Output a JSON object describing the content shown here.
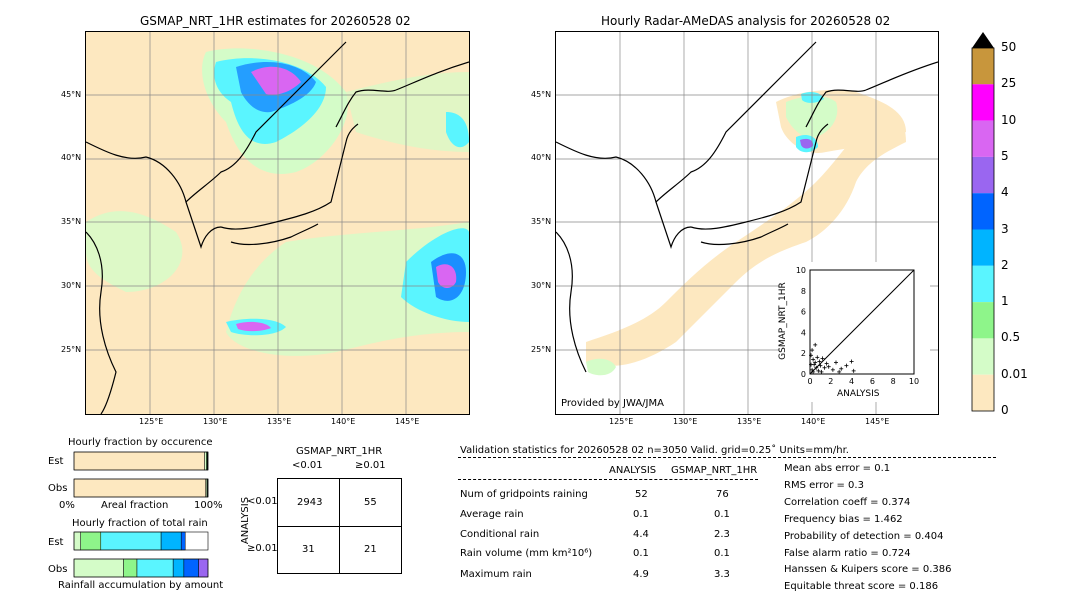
{
  "left_map": {
    "title": "GSMAP_NRT_1HR estimates for 20260528 02",
    "lat_labels": [
      "45°N",
      "40°N",
      "35°N",
      "30°N",
      "25°N"
    ],
    "lon_labels": [
      "125°E",
      "130°E",
      "135°E",
      "140°E",
      "145°E"
    ]
  },
  "right_map": {
    "title": "Hourly Radar-AMeDAS analysis for 20260528 02",
    "lat_labels": [
      "45°N",
      "40°N",
      "35°N",
      "30°N",
      "25°N"
    ],
    "lon_labels": [
      "125°E",
      "130°E",
      "135°E",
      "140°E",
      "145°E"
    ],
    "credit": "Provided by JWA/JMA"
  },
  "colorbar": {
    "labels": [
      "50",
      "25",
      "10",
      "5",
      "4",
      "3",
      "2",
      "1",
      "0.5",
      "0.01",
      "0"
    ],
    "colors": [
      "#c8963c",
      "#ff00ff",
      "#d966f2",
      "#9a66f0",
      "#0064ff",
      "#00b4ff",
      "#5af5ff",
      "#8ef58a",
      "#d4fcc8",
      "#fde8c0"
    ]
  },
  "scatter_inset": {
    "xlabel": "ANALYSIS",
    "ylabel": "GSMAP_NRT_1HR",
    "ticks": [
      "0",
      "2",
      "4",
      "6",
      "8",
      "10"
    ]
  },
  "bars": {
    "occ_title": "Hourly fraction by occurence",
    "occ_xlabel": "Areal fraction",
    "occ_left": "0%",
    "occ_right": "100%",
    "total_title": "Hourly fraction of total rain",
    "total_xlabel": "Rainfall accumulation by amount",
    "est_label": "Est",
    "obs_label": "Obs"
  },
  "contingency": {
    "title": "GSMAP_NRT_1HR",
    "col_lt": "<0.01",
    "col_ge": "≥0.01",
    "row_axis": "ANALYSIS",
    "row_lt": "<0.01",
    "row_ge": "≥0.01",
    "cells": [
      "2943",
      "55",
      "31",
      "21"
    ]
  },
  "validation": {
    "header": "Validation statistics for 20260528 02  n=3050 Valid. grid=0.25˚ Units=mm/hr.",
    "col_analysis": "ANALYSIS",
    "col_gsmap": "GSMAP_NRT_1HR",
    "rows": [
      {
        "label": "Num of gridpoints raining",
        "a": "52",
        "g": "76"
      },
      {
        "label": "Average rain",
        "a": "0.1",
        "g": "0.1"
      },
      {
        "label": "Conditional rain",
        "a": "4.4",
        "g": "2.3"
      },
      {
        "label": "Rain volume (mm km²10⁶)",
        "a": "0.1",
        "g": "0.1"
      },
      {
        "label": "Maximum rain",
        "a": "4.9",
        "g": "3.3"
      }
    ],
    "scores": [
      "Mean abs error =    0.1",
      "RMS error =    0.3",
      "Correlation coeff =  0.374",
      "Frequency bias =  1.462",
      "Probability of detection =  0.404",
      "False alarm ratio =  0.724",
      "Hanssen & Kuipers score =  0.386",
      "Equitable threat score =  0.186"
    ]
  },
  "chart_data": [
    {
      "type": "scatter",
      "xlabel": "ANALYSIS",
      "ylabel": "GSMAP_NRT_1HR",
      "xlim": [
        0,
        10
      ],
      "ylim": [
        0,
        10
      ],
      "points": [
        [
          0.1,
          1.8
        ],
        [
          0.2,
          2.3
        ],
        [
          0.3,
          1.4
        ],
        [
          0.4,
          0.9
        ],
        [
          0.5,
          1.1
        ],
        [
          0.6,
          0.6
        ],
        [
          0.2,
          0.4
        ],
        [
          0.7,
          1.6
        ],
        [
          1.0,
          0.8
        ],
        [
          1.2,
          1.5
        ],
        [
          1.4,
          0.6
        ],
        [
          1.6,
          1.0
        ],
        [
          1.8,
          0.7
        ],
        [
          2.2,
          0.4
        ],
        [
          2.5,
          1.1
        ],
        [
          3.0,
          0.5
        ],
        [
          3.5,
          0.8
        ],
        [
          4.0,
          1.2
        ],
        [
          4.2,
          0.3
        ],
        [
          0.1,
          0.9
        ],
        [
          0.3,
          0.2
        ],
        [
          0.8,
          0.3
        ],
        [
          1.1,
          0.2
        ],
        [
          0.5,
          2.8
        ],
        [
          0.9,
          1.2
        ],
        [
          2.8,
          0.2
        ]
      ]
    },
    {
      "type": "bar",
      "title": "Hourly fraction by occurence",
      "categories": [
        "Est",
        "Obs"
      ],
      "series": [
        {
          "values": [
            0.975,
            0.983
          ],
          "color": "#fde8c0"
        },
        {
          "values": [
            0.013,
            0.009
          ],
          "color": "#d4fcc8"
        },
        {
          "values": [
            0.006,
            0.004
          ],
          "color": "#8ef58a"
        },
        {
          "values": [
            0.004,
            0.003
          ],
          "color": "#5af5ff"
        },
        {
          "values": [
            0.002,
            0.001
          ],
          "color": "#0064ff"
        }
      ]
    },
    {
      "type": "bar",
      "title": "Hourly fraction of total rain",
      "categories": [
        "Est",
        "Obs"
      ],
      "series": [
        {
          "values": [
            0.05,
            0.37
          ],
          "color": "#d4fcc8"
        },
        {
          "values": [
            0.15,
            0.1
          ],
          "color": "#8ef58a"
        },
        {
          "values": [
            0.45,
            0.27
          ],
          "color": "#5af5ff"
        },
        {
          "values": [
            0.15,
            0.08
          ],
          "color": "#00b4ff"
        },
        {
          "values": [
            0.03,
            0.11
          ],
          "color": "#0064ff"
        },
        {
          "values": [
            0.0,
            0.07
          ],
          "color": "#9a66f0"
        }
      ]
    }
  ]
}
